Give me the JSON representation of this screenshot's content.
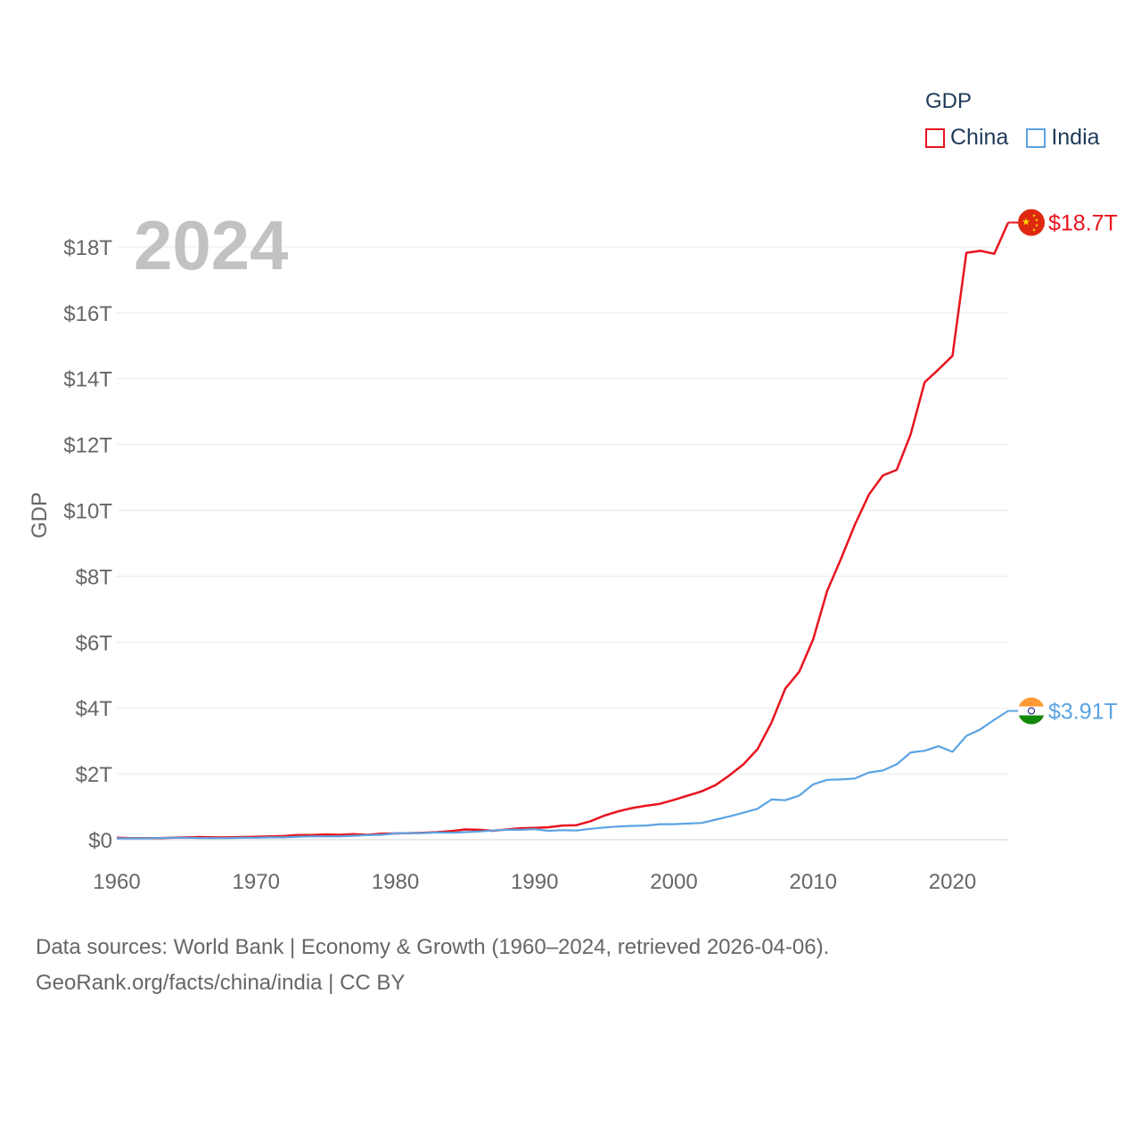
{
  "chart_data": {
    "type": "line",
    "title": "GDP",
    "ylabel": "GDP",
    "xlabel": "",
    "year_label": "2024",
    "xlim": [
      1960,
      2024
    ],
    "ylim": [
      0,
      18.7
    ],
    "x_ticks": [
      1960,
      1970,
      1980,
      1990,
      2000,
      2010,
      2020
    ],
    "x_tick_labels": [
      "1960",
      "1970",
      "1980",
      "1990",
      "2000",
      "2010",
      "2020"
    ],
    "y_ticks": [
      0,
      2,
      4,
      6,
      8,
      10,
      12,
      14,
      16,
      18
    ],
    "y_tick_labels": [
      "$0",
      "$2T",
      "$4T",
      "$6T",
      "$8T",
      "$10T",
      "$12T",
      "$14T",
      "$16T",
      "$18T"
    ],
    "grid": true,
    "legend": {
      "title": "GDP",
      "position": "top-right"
    },
    "x": [
      1960,
      1961,
      1962,
      1963,
      1964,
      1965,
      1966,
      1967,
      1968,
      1969,
      1970,
      1971,
      1972,
      1973,
      1974,
      1975,
      1976,
      1977,
      1978,
      1979,
      1980,
      1981,
      1982,
      1983,
      1984,
      1985,
      1986,
      1987,
      1988,
      1989,
      1990,
      1991,
      1992,
      1993,
      1994,
      1995,
      1996,
      1997,
      1998,
      1999,
      2000,
      2001,
      2002,
      2003,
      2004,
      2005,
      2006,
      2007,
      2008,
      2009,
      2010,
      2011,
      2012,
      2013,
      2014,
      2015,
      2016,
      2017,
      2018,
      2019,
      2020,
      2021,
      2022,
      2023,
      2024
    ],
    "series": [
      {
        "name": "China",
        "color": "#e8141e",
        "icon": "china-flag-icon",
        "end_label": "$18.7T",
        "values": [
          0.06,
          0.05,
          0.05,
          0.05,
          0.06,
          0.07,
          0.08,
          0.07,
          0.07,
          0.08,
          0.09,
          0.1,
          0.11,
          0.14,
          0.14,
          0.16,
          0.15,
          0.17,
          0.15,
          0.18,
          0.19,
          0.2,
          0.21,
          0.23,
          0.26,
          0.31,
          0.3,
          0.27,
          0.31,
          0.35,
          0.36,
          0.38,
          0.43,
          0.44,
          0.56,
          0.73,
          0.86,
          0.96,
          1.03,
          1.09,
          1.21,
          1.34,
          1.47,
          1.66,
          1.96,
          2.29,
          2.75,
          3.55,
          4.59,
          5.1,
          6.09,
          7.55,
          8.53,
          9.57,
          10.48,
          11.06,
          11.23,
          12.31,
          13.89,
          14.28,
          14.69,
          17.82,
          17.88,
          17.79,
          18.74
        ]
      },
      {
        "name": "India",
        "color": "#5ba3e3",
        "icon": "india-flag-icon",
        "end_label": "$3.91T",
        "values": [
          0.04,
          0.04,
          0.04,
          0.05,
          0.06,
          0.06,
          0.05,
          0.05,
          0.05,
          0.06,
          0.06,
          0.07,
          0.07,
          0.09,
          0.1,
          0.1,
          0.1,
          0.12,
          0.14,
          0.15,
          0.19,
          0.2,
          0.2,
          0.22,
          0.21,
          0.23,
          0.25,
          0.28,
          0.3,
          0.3,
          0.32,
          0.27,
          0.29,
          0.28,
          0.33,
          0.37,
          0.4,
          0.42,
          0.43,
          0.47,
          0.47,
          0.49,
          0.51,
          0.61,
          0.71,
          0.82,
          0.94,
          1.22,
          1.2,
          1.34,
          1.68,
          1.82,
          1.83,
          1.86,
          2.04,
          2.1,
          2.29,
          2.65,
          2.7,
          2.84,
          2.67,
          3.15,
          3.35,
          3.64,
          3.91
        ]
      }
    ]
  },
  "footer": {
    "line1": "Data sources: World Bank | Economy & Growth (1960–2024, retrieved 2026-04-06).",
    "line2": "GeoRank.org/facts/china/india | CC BY"
  }
}
